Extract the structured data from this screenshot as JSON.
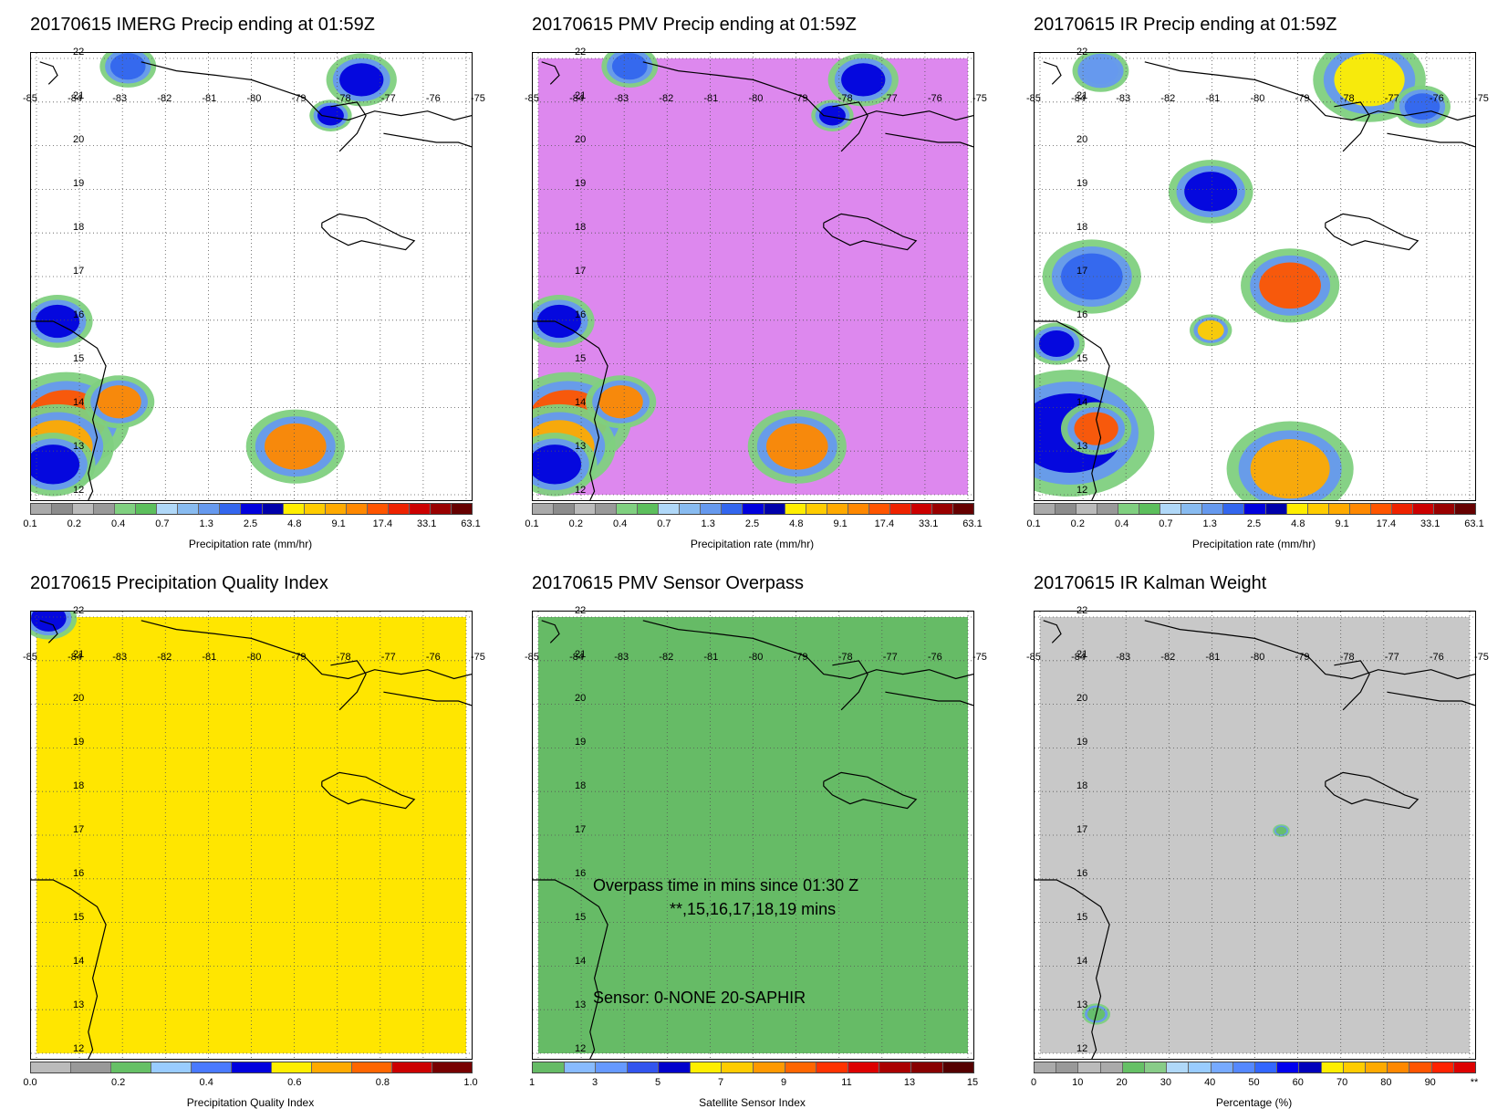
{
  "panels": [
    {
      "id": "imerg",
      "title": "20170615 IMERG Precip ending at 01:59Z",
      "cbar_label": "Precipitation rate (mm/hr)",
      "cbar_ticks": [
        "0.1",
        "0.2",
        "0.4",
        "0.7",
        "1.3",
        "2.5",
        "4.8",
        "9.1",
        "17.4",
        "33.1",
        "63.1"
      ],
      "scheme": "precip",
      "fill": "#ffffff"
    },
    {
      "id": "pmv",
      "title": "20170615 PMV Precip ending at 01:59Z",
      "cbar_label": "Precipitation rate (mm/hr)",
      "cbar_ticks": [
        "0.1",
        "0.2",
        "0.4",
        "0.7",
        "1.3",
        "2.5",
        "4.8",
        "9.1",
        "17.4",
        "33.1",
        "63.1"
      ],
      "scheme": "precip",
      "fill": "#dd88ee"
    },
    {
      "id": "ir",
      "title": "20170615 IR Precip ending at 01:59Z",
      "cbar_label": "Precipitation rate (mm/hr)",
      "cbar_ticks": [
        "0.1",
        "0.2",
        "0.4",
        "0.7",
        "1.3",
        "2.5",
        "4.8",
        "9.1",
        "17.4",
        "33.1",
        "63.1"
      ],
      "scheme": "precip",
      "fill": "#ffffff"
    },
    {
      "id": "qi",
      "title": "20170615 Precipitation Quality Index",
      "cbar_label": "Precipitation Quality Index",
      "cbar_ticks": [
        "0.0",
        "0.2",
        "0.4",
        "0.6",
        "0.8",
        "1.0"
      ],
      "scheme": "quality",
      "fill": "#ffe600"
    },
    {
      "id": "sensor",
      "title": "20170615 PMV Sensor Overpass",
      "cbar_label": "Satellite Sensor Index",
      "cbar_ticks": [
        "1",
        "3",
        "5",
        "7",
        "9",
        "11",
        "13",
        "15"
      ],
      "scheme": "sensor",
      "fill": "#66bb66",
      "notes": [
        "Overpass time in mins since 01:30 Z",
        "**,15,16,17,18,19 mins",
        "Sensor:   0-NONE 20-SAPHIR"
      ]
    },
    {
      "id": "kalman",
      "title": "20170615 IR Kalman Weight",
      "cbar_label": "Percentage (%)",
      "cbar_ticks": [
        "0",
        "10",
        "20",
        "30",
        "40",
        "50",
        "60",
        "70",
        "80",
        "90",
        "**"
      ],
      "scheme": "percent",
      "fill": "#c8c8c8"
    }
  ],
  "axes": {
    "lon_labels": [
      "-85",
      "-84",
      "-83",
      "-82",
      "-81",
      "-80",
      "-79",
      "-78",
      "-77",
      "-76",
      "-75"
    ],
    "lat_labels": [
      "22",
      "21",
      "20",
      "19",
      "18",
      "17",
      "16",
      "15",
      "14",
      "13",
      "12"
    ]
  },
  "colors": {
    "precip": [
      "#aaaaaa",
      "#8c8c8c",
      "#bbbbbb",
      "#999999",
      "#80d080",
      "#5cbf5c",
      "#b0d8f8",
      "#88bbf0",
      "#6699ee",
      "#3366ee",
      "#0000dd",
      "#0000aa",
      "#ffee00",
      "#ffcc00",
      "#ffaa00",
      "#ff8800",
      "#ff5500",
      "#ee2200",
      "#cc0000",
      "#990000",
      "#660000"
    ],
    "quality": [
      "#bbbbbb",
      "#999999",
      "#66c066",
      "#99ccff",
      "#4a7aff",
      "#0000dd",
      "#ffee00",
      "#ffaa00",
      "#ff6600",
      "#cc0000",
      "#770000"
    ],
    "sensor": [
      "#66bb66",
      "#88bbff",
      "#6699ff",
      "#3355ee",
      "#0000cc",
      "#ffee00",
      "#ffcc00",
      "#ff9900",
      "#ff6600",
      "#ff3300",
      "#dd0000",
      "#aa0000",
      "#880000",
      "#550000"
    ],
    "percent": [
      "#aaaaaa",
      "#999999",
      "#bbbbbb",
      "#aaaaaa",
      "#66c066",
      "#88cc88",
      "#b0d8f8",
      "#99ccff",
      "#77aaff",
      "#5588ff",
      "#3366ff",
      "#0000ee",
      "#0000bb",
      "#ffee00",
      "#ffcc00",
      "#ffaa00",
      "#ff8800",
      "#ff5500",
      "#ff2200",
      "#dd0000"
    ]
  }
}
